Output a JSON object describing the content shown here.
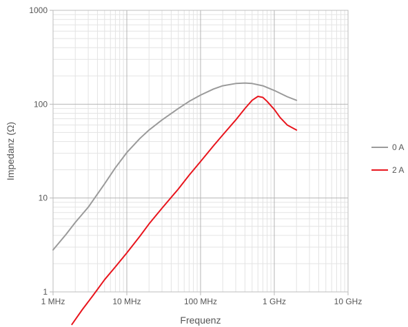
{
  "chart_data": {
    "type": "line",
    "title": "",
    "xlabel": "Frequenz",
    "ylabel": "Impedanz (Ω)",
    "x_scale": "log",
    "y_scale": "log",
    "xlim_hz": [
      1000000,
      10000000000
    ],
    "ylim_ohm": [
      1,
      1000
    ],
    "grid": true,
    "legend_position": "right",
    "x_ticks": [
      {
        "value": 1000000,
        "label": "1 MHz"
      },
      {
        "value": 10000000,
        "label": "10 MHz"
      },
      {
        "value": 100000000,
        "label": "100 MHz"
      },
      {
        "value": 1000000000,
        "label": "1 GHz"
      },
      {
        "value": 10000000000,
        "label": "10 GHz"
      }
    ],
    "y_ticks": [
      {
        "value": 1,
        "label": "1"
      },
      {
        "value": 10,
        "label": "10"
      },
      {
        "value": 100,
        "label": "100"
      },
      {
        "value": 1000,
        "label": "1000"
      }
    ],
    "series": [
      {
        "name": "0 A",
        "color": "#9a9a9a",
        "x_hz": [
          1000000,
          1500000,
          2000000,
          3000000,
          5000000,
          7000000,
          10000000,
          15000000,
          20000000,
          30000000,
          50000000,
          70000000,
          100000000,
          150000000,
          200000000,
          300000000,
          400000000,
          500000000,
          700000000,
          1000000000,
          1500000000,
          2000000000
        ],
        "y_ohm": [
          2.8,
          4.1,
          5.5,
          8.0,
          14.2,
          21.0,
          30.5,
          43.0,
          53.0,
          68.0,
          90.0,
          107.0,
          125.0,
          145.0,
          157.0,
          166.0,
          168.0,
          166.0,
          157.0,
          140.0,
          120.0,
          110.0
        ]
      },
      {
        "name": "2 A",
        "color": "#e8141c",
        "x_hz": [
          1800000,
          2500000,
          3500000,
          5000000,
          7000000,
          10000000,
          15000000,
          20000000,
          30000000,
          50000000,
          70000000,
          100000000,
          150000000,
          200000000,
          300000000,
          400000000,
          500000000,
          600000000,
          700000000,
          800000000,
          1000000000,
          1200000000,
          1500000000,
          2000000000
        ],
        "y_ohm": [
          0.45,
          0.65,
          0.92,
          1.35,
          1.85,
          2.6,
          3.9,
          5.3,
          7.8,
          12.5,
          17.5,
          24.5,
          36.0,
          47.0,
          68.0,
          90.0,
          110.0,
          121.0,
          118.0,
          107.0,
          88.0,
          72.0,
          60.0,
          53.0
        ]
      }
    ]
  }
}
